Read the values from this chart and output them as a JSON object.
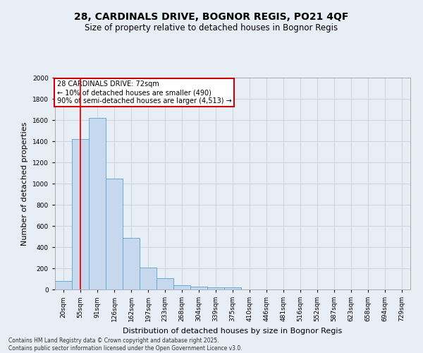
{
  "title": "28, CARDINALS DRIVE, BOGNOR REGIS, PO21 4QF",
  "subtitle": "Size of property relative to detached houses in Bognor Regis",
  "xlabel": "Distribution of detached houses by size in Bognor Regis",
  "ylabel": "Number of detached properties",
  "bar_labels": [
    "20sqm",
    "55sqm",
    "91sqm",
    "126sqm",
    "162sqm",
    "197sqm",
    "233sqm",
    "268sqm",
    "304sqm",
    "339sqm",
    "375sqm",
    "410sqm",
    "446sqm",
    "481sqm",
    "516sqm",
    "552sqm",
    "587sqm",
    "623sqm",
    "658sqm",
    "694sqm",
    "729sqm"
  ],
  "bar_values": [
    80,
    1420,
    1620,
    1050,
    490,
    205,
    105,
    40,
    25,
    20,
    20,
    0,
    0,
    0,
    0,
    0,
    0,
    0,
    0,
    0,
    0
  ],
  "bar_color": "#c5d8ed",
  "bar_edge_color": "#6aaad4",
  "red_line_x": 1.02,
  "annotation_text": "28 CARDINALS DRIVE: 72sqm\n← 10% of detached houses are smaller (490)\n90% of semi-detached houses are larger (4,513) →",
  "annotation_box_color": "#ffffff",
  "annotation_box_edge": "#cc0000",
  "ylim": [
    0,
    2000
  ],
  "yticks": [
    0,
    200,
    400,
    600,
    800,
    1000,
    1200,
    1400,
    1600,
    1800,
    2000
  ],
  "grid_color": "#c8d0dc",
  "background_color": "#e8eef5",
  "footer_line1": "Contains HM Land Registry data © Crown copyright and database right 2025.",
  "footer_line2": "Contains public sector information licensed under the Open Government Licence v3.0.",
  "title_fontsize": 10,
  "subtitle_fontsize": 8.5,
  "tick_fontsize": 6.5,
  "ylabel_fontsize": 8,
  "xlabel_fontsize": 8,
  "annotation_fontsize": 7,
  "footer_fontsize": 5.5
}
